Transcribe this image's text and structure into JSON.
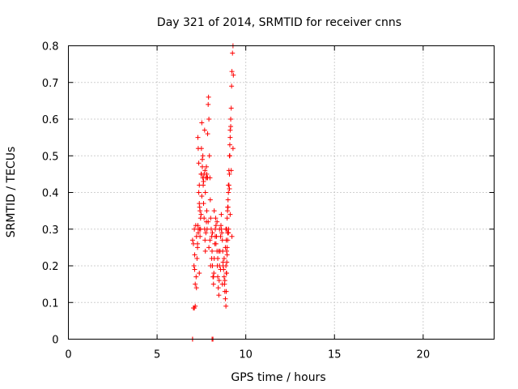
{
  "chart_data": {
    "type": "scatter",
    "title": "Day 321 of 2014, SRMTID for receiver cnns",
    "xlabel": "GPS time / hours",
    "ylabel": "SRMTID / TECUs",
    "xlim": [
      0,
      24
    ],
    "ylim": [
      0,
      0.8
    ],
    "xticks": [
      0,
      5,
      10,
      15,
      20
    ],
    "yticks": [
      0,
      0.1,
      0.2,
      0.3,
      0.4,
      0.5,
      0.6,
      0.7,
      0.8
    ],
    "ytick_labels": [
      "0",
      "0.1",
      "0.2",
      "0.3",
      "0.4",
      "0.5",
      "0.6",
      "0.7",
      "0.8"
    ],
    "grid": true,
    "marker": "+",
    "series": [
      {
        "name": "SRMTID",
        "color": "#ff0000",
        "x": [
          7.0,
          7.0,
          7.05,
          8.1,
          8.15,
          7.1,
          7.15,
          7.0,
          7.05,
          7.1,
          7.12,
          7.15,
          7.2,
          7.22,
          7.25,
          7.28,
          7.3,
          7.32,
          7.35,
          7.38,
          7.4,
          7.42,
          7.45,
          7.48,
          7.5,
          7.52,
          7.55,
          7.58,
          7.6,
          7.62,
          7.65,
          7.68,
          7.7,
          7.72,
          7.75,
          7.78,
          7.8,
          7.82,
          7.85,
          7.88,
          7.9,
          7.92,
          7.95,
          7.98,
          8.0,
          8.02,
          8.05,
          8.08,
          8.1,
          8.12,
          8.15,
          8.18,
          8.2,
          8.22,
          8.25,
          8.28,
          8.3,
          8.32,
          8.35,
          8.38,
          8.4,
          8.42,
          8.45,
          8.48,
          8.5,
          8.52,
          8.55,
          8.58,
          8.6,
          8.62,
          8.65,
          8.68,
          8.7,
          8.72,
          8.75,
          8.78,
          8.8,
          8.82,
          8.85,
          8.88,
          8.9,
          8.92,
          8.95,
          8.98,
          9.0,
          9.02,
          9.05,
          9.08,
          9.1,
          9.12,
          9.15,
          9.18,
          9.2,
          9.22,
          9.25,
          9.28,
          9.3,
          7.08,
          7.18,
          7.28,
          7.38,
          7.48,
          7.58,
          7.68,
          7.78,
          7.88,
          7.98,
          8.08,
          8.18,
          8.28,
          8.38,
          8.48,
          8.58,
          8.68,
          8.78,
          8.88,
          8.98,
          9.08,
          9.18,
          9.28,
          7.12,
          7.22,
          7.32,
          7.42,
          7.52,
          7.62,
          7.72,
          7.82,
          7.92,
          8.02,
          8.12,
          8.22,
          8.32,
          8.42,
          8.52,
          8.62,
          8.72,
          8.82,
          8.92,
          9.02,
          9.12,
          9.22,
          7.5,
          7.55,
          7.6,
          7.65,
          7.7,
          7.75,
          7.8,
          7.85,
          8.9,
          8.92,
          8.95,
          8.97,
          9.0,
          9.02,
          9.05,
          9.08,
          9.1,
          9.12,
          9.15,
          7.3,
          7.32,
          7.35,
          7.38,
          7.4,
          7.45,
          8.85,
          8.88,
          8.9,
          8.93,
          8.95,
          8.98,
          9.0,
          9.03
        ],
        "y": [
          0.0,
          0.0,
          0.085,
          0.0,
          0.0,
          0.085,
          0.09,
          0.27,
          0.26,
          0.3,
          0.19,
          0.15,
          0.17,
          0.14,
          0.22,
          0.25,
          0.31,
          0.29,
          0.4,
          0.37,
          0.3,
          0.28,
          0.33,
          0.45,
          0.52,
          0.59,
          0.49,
          0.44,
          0.42,
          0.37,
          0.33,
          0.3,
          0.27,
          0.24,
          0.29,
          0.32,
          0.35,
          0.44,
          0.56,
          0.64,
          0.66,
          0.6,
          0.5,
          0.44,
          0.38,
          0.33,
          0.3,
          0.28,
          0.24,
          0.2,
          0.17,
          0.15,
          0.18,
          0.22,
          0.26,
          0.3,
          0.33,
          0.31,
          0.28,
          0.24,
          0.2,
          0.17,
          0.14,
          0.12,
          0.16,
          0.2,
          0.24,
          0.28,
          0.31,
          0.3,
          0.29,
          0.27,
          0.24,
          0.21,
          0.19,
          0.17,
          0.15,
          0.13,
          0.11,
          0.09,
          0.13,
          0.18,
          0.23,
          0.29,
          0.36,
          0.42,
          0.46,
          0.5,
          0.53,
          0.57,
          0.6,
          0.63,
          0.69,
          0.73,
          0.78,
          0.8,
          0.72,
          0.2,
          0.31,
          0.26,
          0.18,
          0.34,
          0.5,
          0.57,
          0.47,
          0.32,
          0.27,
          0.22,
          0.17,
          0.28,
          0.32,
          0.24,
          0.19,
          0.15,
          0.22,
          0.3,
          0.36,
          0.41,
          0.46,
          0.52,
          0.23,
          0.28,
          0.3,
          0.35,
          0.39,
          0.43,
          0.4,
          0.3,
          0.25,
          0.2,
          0.29,
          0.35,
          0.26,
          0.22,
          0.3,
          0.34,
          0.2,
          0.16,
          0.24,
          0.29,
          0.34,
          0.28,
          0.45,
          0.47,
          0.44,
          0.45,
          0.46,
          0.44,
          0.45,
          0.44,
          0.27,
          0.3,
          0.33,
          0.35,
          0.38,
          0.4,
          0.42,
          0.45,
          0.5,
          0.55,
          0.58,
          0.55,
          0.52,
          0.48,
          0.42,
          0.36,
          0.3,
          0.25,
          0.2,
          0.18,
          0.21,
          0.25,
          0.27,
          0.29,
          0.3
        ]
      }
    ]
  }
}
